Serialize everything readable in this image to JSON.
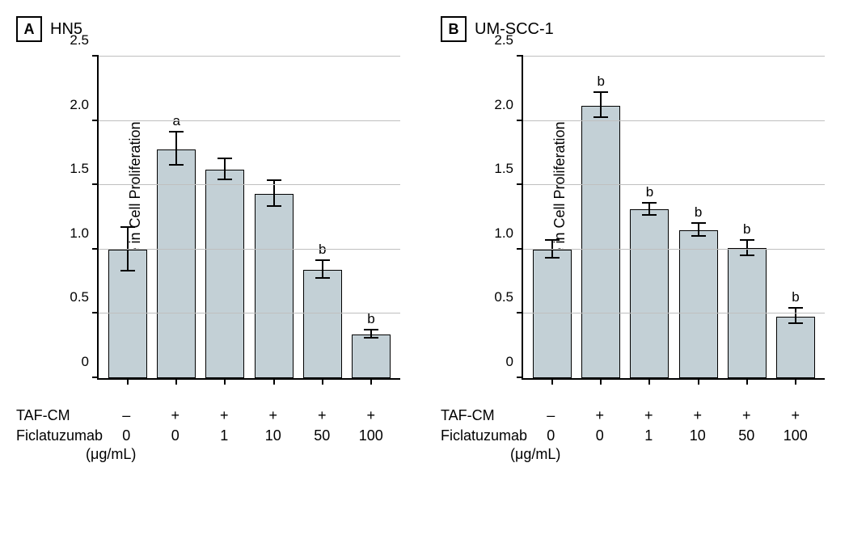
{
  "figure": {
    "background_color": "#ffffff",
    "bar_fill": "#c3d0d6",
    "bar_border": "#000000",
    "grid_color": "#bfbfbf",
    "axis_color": "#000000",
    "font_family": "Arial",
    "y_axis": {
      "label": "Fold Change in Cell Proliferation",
      "min": 0,
      "max": 2.5,
      "tick_step": 0.5,
      "ticks": [
        "0",
        "0.5",
        "1.0",
        "1.5",
        "2.0",
        "2.5"
      ]
    },
    "panels": [
      {
        "letter": "A",
        "title": "HN5",
        "bars": [
          {
            "value": 1.0,
            "err": 0.17,
            "sig": ""
          },
          {
            "value": 1.78,
            "err": 0.13,
            "sig": "a"
          },
          {
            "value": 1.62,
            "err": 0.08,
            "sig": ""
          },
          {
            "value": 1.43,
            "err": 0.1,
            "sig": ""
          },
          {
            "value": 0.84,
            "err": 0.07,
            "sig": "b"
          },
          {
            "value": 0.34,
            "err": 0.03,
            "sig": "b"
          }
        ],
        "x_rows": [
          {
            "label": "TAF-CM",
            "values": [
              "–",
              "+",
              "+",
              "+",
              "+",
              "+"
            ]
          },
          {
            "label": "Ficlatuzumab",
            "values": [
              "0",
              "0",
              "1",
              "10",
              "50",
              "100"
            ]
          }
        ],
        "unit": "(μg/mL)"
      },
      {
        "letter": "B",
        "title": "UM-SCC-1",
        "bars": [
          {
            "value": 1.0,
            "err": 0.07,
            "sig": ""
          },
          {
            "value": 2.12,
            "err": 0.1,
            "sig": "b"
          },
          {
            "value": 1.31,
            "err": 0.05,
            "sig": "b"
          },
          {
            "value": 1.15,
            "err": 0.05,
            "sig": "b"
          },
          {
            "value": 1.01,
            "err": 0.06,
            "sig": "b"
          },
          {
            "value": 0.48,
            "err": 0.06,
            "sig": "b"
          }
        ],
        "x_rows": [
          {
            "label": "TAF-CM",
            "values": [
              "–",
              "+",
              "+",
              "+",
              "+",
              "+"
            ]
          },
          {
            "label": "Ficlatuzumab",
            "values": [
              "0",
              "0",
              "1",
              "10",
              "50",
              "100"
            ]
          }
        ],
        "unit": "(μg/mL)"
      }
    ]
  }
}
